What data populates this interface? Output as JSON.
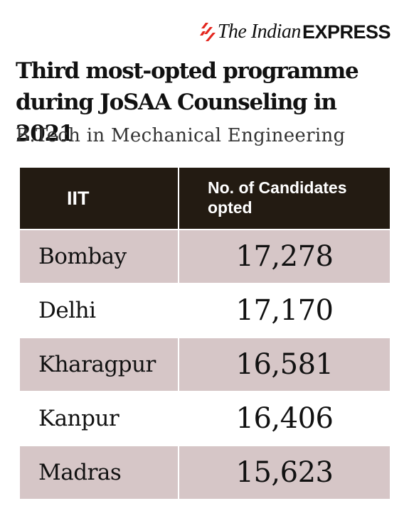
{
  "brand": {
    "the_indian": "The Indian",
    "express": "EXPRESS",
    "accent_color": "#e4261e",
    "icon": "flame-stripes-icon"
  },
  "colors": {
    "header_bg": "#231b12",
    "row_shade": "#d6c6c7"
  },
  "chart_data": {
    "type": "table",
    "title_lines": [
      "Third most-opted programme",
      "during JoSAA Counseling in 2021"
    ],
    "subtitle": "B.Tech in Mechanical Engineering",
    "columns": [
      "IIT",
      "No. of Candidates opted"
    ],
    "rows": [
      {
        "iit": "Bombay",
        "candidates": "17,278"
      },
      {
        "iit": "Delhi",
        "candidates": "17,170"
      },
      {
        "iit": "Kharagpur",
        "candidates": "16,581"
      },
      {
        "iit": "Kanpur",
        "candidates": "16,406"
      },
      {
        "iit": "Madras",
        "candidates": "15,623"
      }
    ],
    "header_right_lines": [
      "No. of Candidates",
      "opted"
    ]
  }
}
